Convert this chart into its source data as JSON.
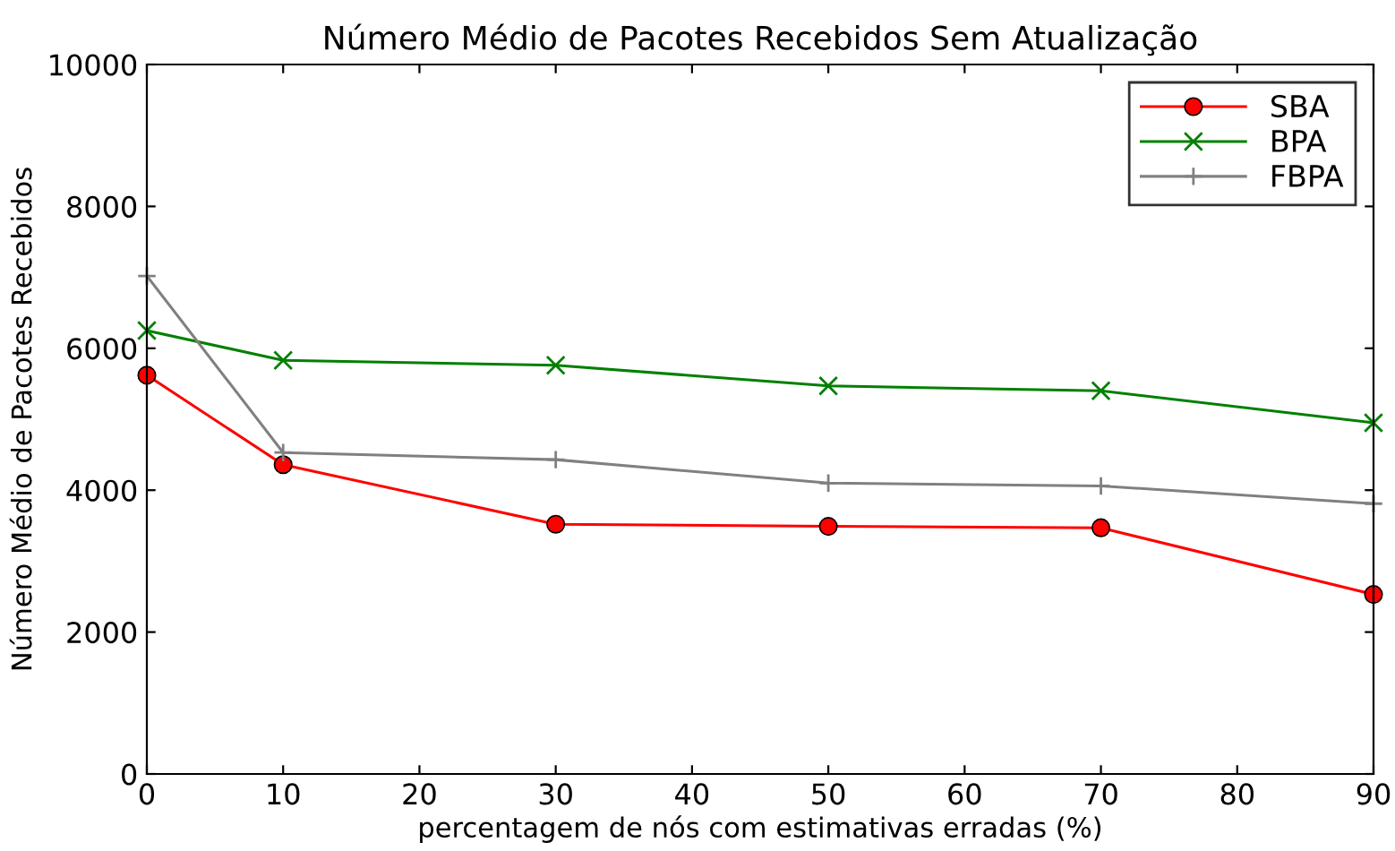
{
  "chart_data": {
    "type": "line",
    "title": "Número Médio de Pacotes Recebidos Sem Atualização",
    "xlabel": "percentagem de nós com estimativas erradas (%)",
    "ylabel": "Número Médio de Pacotes Recebidos",
    "x": [
      0,
      10,
      30,
      50,
      70,
      90
    ],
    "series": [
      {
        "name": "SBA",
        "color": "#ff0000",
        "marker": "circle",
        "values": [
          5620,
          4360,
          3520,
          3490,
          3470,
          2530
        ]
      },
      {
        "name": "BPA",
        "color": "#008000",
        "marker": "cross",
        "values": [
          6250,
          5830,
          5760,
          5470,
          5400,
          4950
        ]
      },
      {
        "name": "FBPA",
        "color": "#808080",
        "marker": "plus",
        "values": [
          7020,
          4530,
          4430,
          4100,
          4060,
          3810
        ]
      }
    ],
    "xlim": [
      0,
      90
    ],
    "xticks": [
      0,
      10,
      20,
      30,
      40,
      50,
      60,
      70,
      80,
      90
    ],
    "ylim": [
      0,
      10000
    ],
    "yticks": [
      0,
      2000,
      4000,
      6000,
      8000,
      10000
    ],
    "grid": false,
    "legend": "top right",
    "line_style": "solid"
  }
}
